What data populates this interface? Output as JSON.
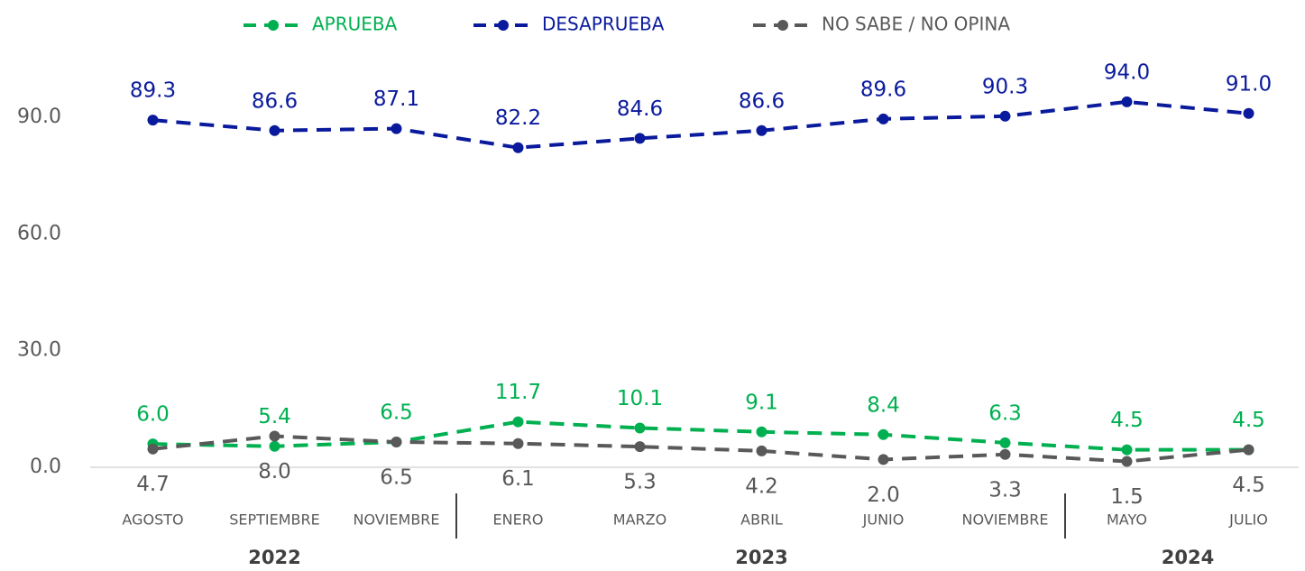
{
  "chart_data": {
    "type": "line",
    "groups": [
      {
        "label": "2022",
        "categories": [
          "AGOSTO",
          "SEPTIEMBRE",
          "NOVIEMBRE"
        ]
      },
      {
        "label": "2023",
        "categories": [
          "ENERO",
          "MARZO",
          "ABRIL",
          "JUNIO",
          "NOVIEMBRE"
        ]
      },
      {
        "label": "2024",
        "categories": [
          "MAYO",
          "JULIO"
        ]
      }
    ],
    "series": [
      {
        "name": "APRUEBA",
        "color": "#00b050",
        "values": [
          6.0,
          5.4,
          6.5,
          11.7,
          10.1,
          9.1,
          8.4,
          6.3,
          4.5,
          4.5
        ],
        "value_labels": [
          "6.0",
          "5.4",
          "6.5",
          "11.7",
          "10.1",
          "9.1",
          "8.4",
          "6.3",
          "4.5",
          "4.5"
        ]
      },
      {
        "name": "DESAPRUEBA",
        "color": "#0a1a9c",
        "values": [
          89.3,
          86.6,
          87.1,
          82.2,
          84.6,
          86.6,
          89.6,
          90.3,
          94.0,
          91.0
        ],
        "value_labels": [
          "89.3",
          "86.6",
          "87.1",
          "82.2",
          "84.6",
          "86.6",
          "89.6",
          "90.3",
          "94.0",
          "91.0"
        ]
      },
      {
        "name": "NO SABE / NO OPINA",
        "color": "#595959",
        "values": [
          4.7,
          8.0,
          6.5,
          6.1,
          5.3,
          4.2,
          2.0,
          3.3,
          1.5,
          4.5
        ],
        "value_labels": [
          "4.7",
          "8.0",
          "6.5",
          "6.1",
          "5.3",
          "4.2",
          "2.0",
          "3.3",
          "1.5",
          "4.5"
        ]
      }
    ],
    "ylim": [
      0,
      100
    ],
    "yticks": [
      {
        "value": 0,
        "label": "0.0"
      },
      {
        "value": 30,
        "label": "30.0"
      },
      {
        "value": 60,
        "label": "60.0"
      },
      {
        "value": 90,
        "label": "90.0"
      }
    ],
    "legend": "top"
  }
}
